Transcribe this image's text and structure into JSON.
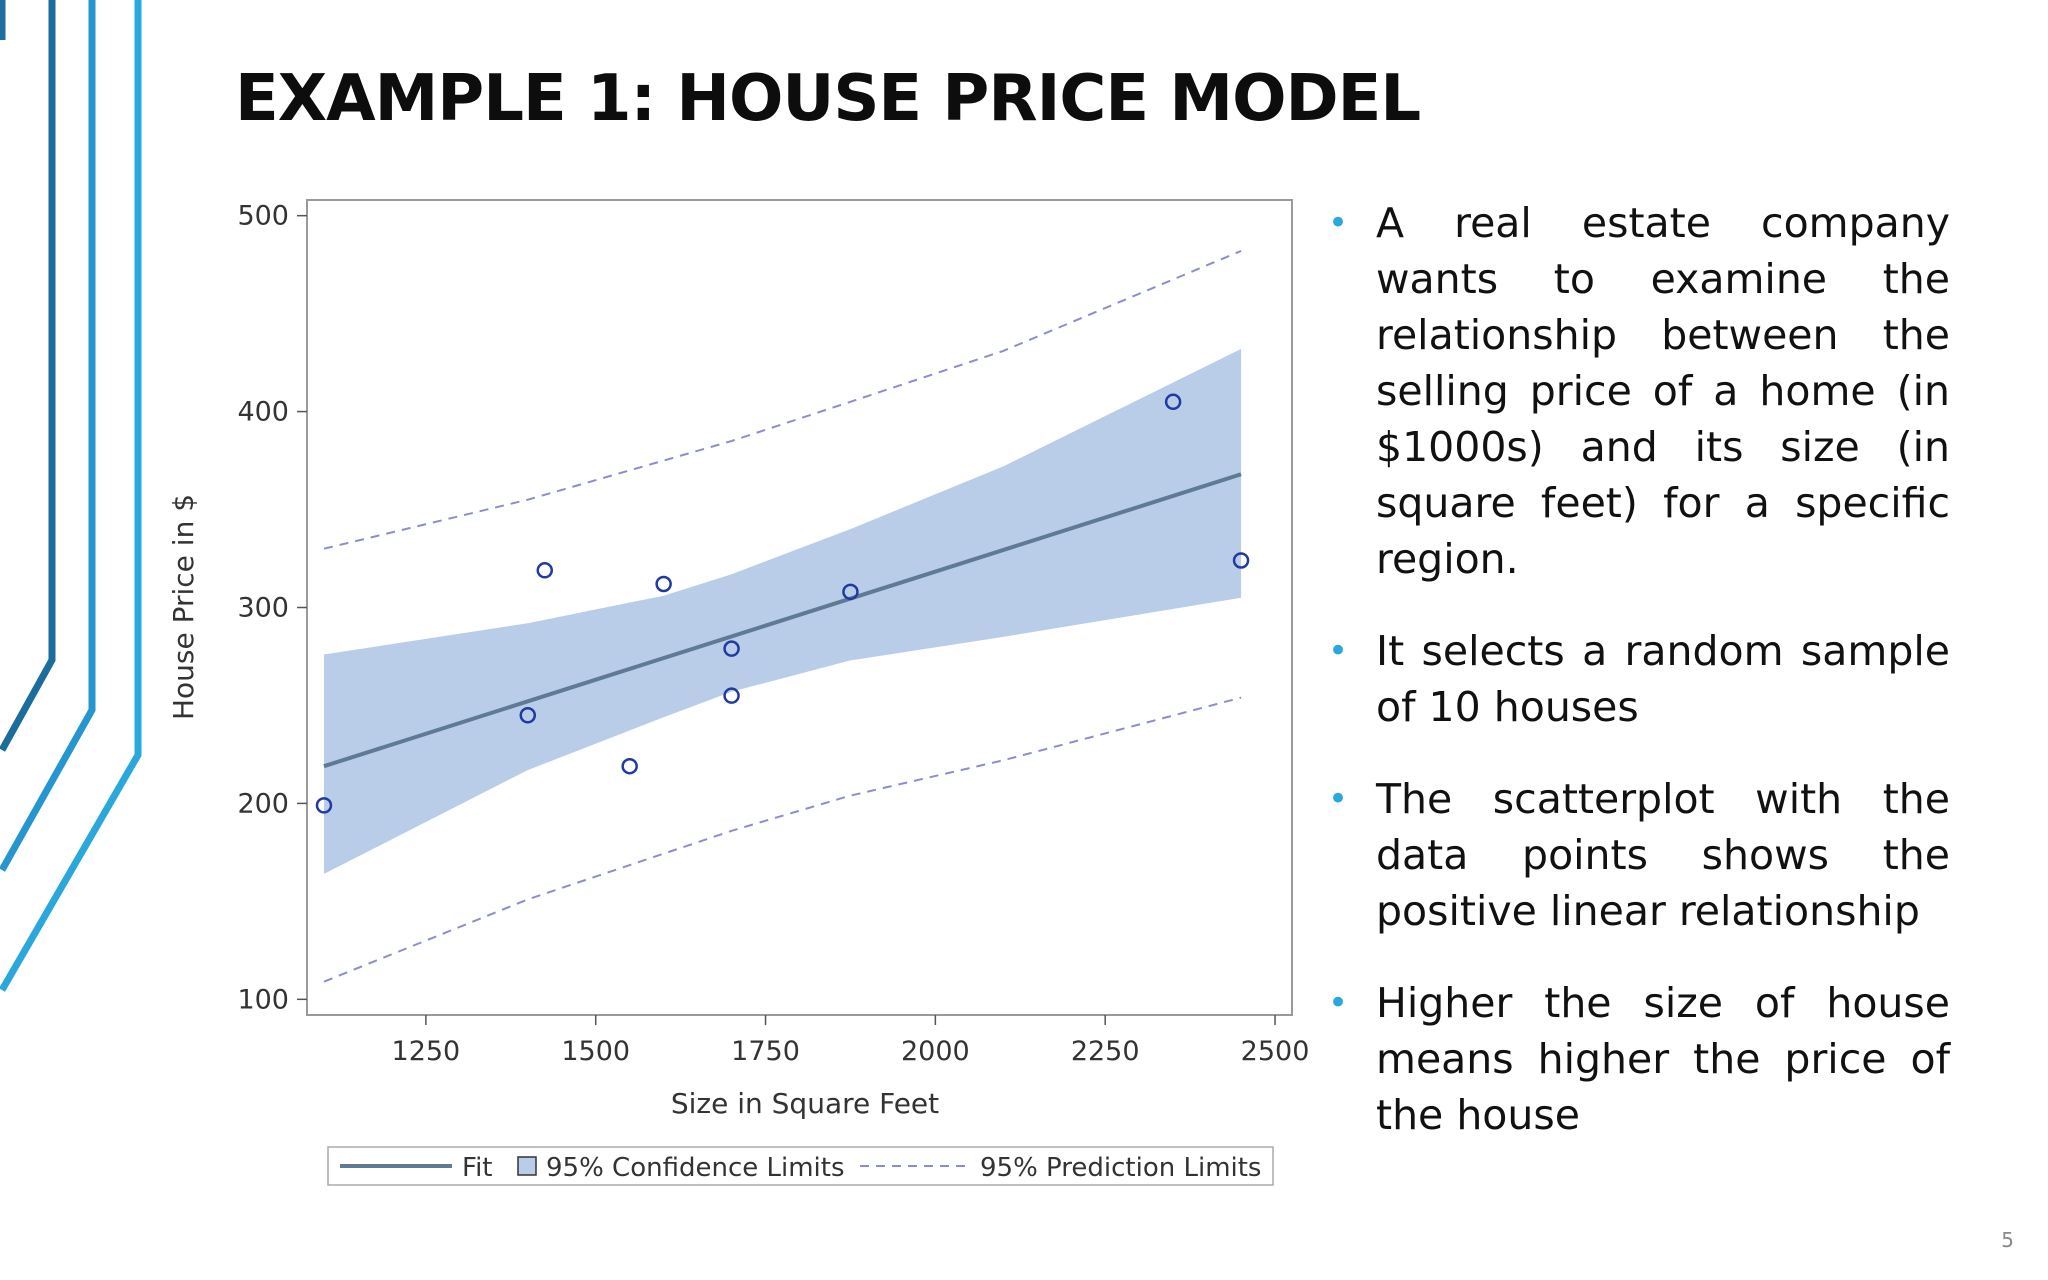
{
  "slide": {
    "title": "EXAMPLE 1: HOUSE PRICE MODEL",
    "page_number": "5",
    "accent_color": "#2aa8dc",
    "bullets": [
      "A real estate company wants to examine the relationship between the selling price of a home (in $1000s)  and its size (in square feet) for a specific region.",
      "It selects a random sample of 10 houses",
      "The scatterplot with the data points shows the positive linear relationship",
      "Higher the size of house means higher the price of the house"
    ]
  },
  "chart_data": {
    "type": "scatter",
    "title": "",
    "xlabel": "Size in Square Feet",
    "ylabel": "House Price in $",
    "xlim": [
      1075,
      2525
    ],
    "ylim": [
      92,
      508
    ],
    "x_ticks": [
      "1250",
      "1500",
      "1750",
      "2000",
      "2250",
      "2500"
    ],
    "y_ticks": [
      "100",
      "200",
      "300",
      "400",
      "500"
    ],
    "grid": false,
    "legend_position": "bottom",
    "legend": {
      "fit": "Fit",
      "confidence": "95% Confidence Limits",
      "prediction": "95% Prediction Limits"
    },
    "colors": {
      "fit": "#5f7a95",
      "band": "#b9cde8",
      "prediction": "#8a8ed0",
      "points": "#1f3aa0"
    },
    "points": [
      {
        "x": 1100,
        "y": 199
      },
      {
        "x": 1400,
        "y": 245
      },
      {
        "x": 1425,
        "y": 319
      },
      {
        "x": 1550,
        "y": 219
      },
      {
        "x": 1600,
        "y": 312
      },
      {
        "x": 1700,
        "y": 279
      },
      {
        "x": 1700,
        "y": 255
      },
      {
        "x": 1875,
        "y": 308
      },
      {
        "x": 2350,
        "y": 405
      },
      {
        "x": 2450,
        "y": 324
      }
    ],
    "fit": {
      "x": [
        1100,
        2450
      ],
      "y": [
        219,
        368
      ]
    },
    "confidence_limits": {
      "x": [
        1100,
        1400,
        1600,
        1700,
        1875,
        2100,
        2450
      ],
      "lower": [
        164,
        217,
        244,
        257,
        273,
        285,
        305
      ],
      "upper": [
        276,
        292,
        306,
        317,
        340,
        372,
        432
      ]
    },
    "prediction_limits": {
      "x": [
        1100,
        1400,
        1700,
        1875,
        2100,
        2450
      ],
      "lower": [
        109,
        151,
        186,
        204,
        222,
        254
      ],
      "upper": [
        330,
        355,
        385,
        405,
        431,
        482
      ]
    }
  }
}
